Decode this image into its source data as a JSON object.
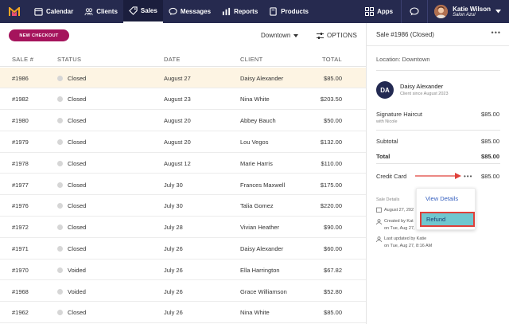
{
  "nav": {
    "items": [
      {
        "label": "Calendar",
        "icon": "calendar-icon"
      },
      {
        "label": "Clients",
        "icon": "clients-icon"
      },
      {
        "label": "Sales",
        "icon": "tag-icon",
        "active": true
      },
      {
        "label": "Messages",
        "icon": "messages-icon"
      },
      {
        "label": "Reports",
        "icon": "reports-icon"
      },
      {
        "label": "Products",
        "icon": "products-icon"
      }
    ],
    "apps_label": "Apps",
    "user_name": "Katie Wilson",
    "user_business": "Salon Azul",
    "colors": {
      "nav_bg": "#262a4f",
      "accent": "#a5145c"
    }
  },
  "toolbar": {
    "new_checkout": "NEW CHECKOUT",
    "location": "Downtown",
    "options": "OPTIONS"
  },
  "table": {
    "headers": {
      "sale": "SALE #",
      "status": "STATUS",
      "date": "DATE",
      "client": "CLIENT",
      "total": "TOTAL"
    },
    "rows": [
      {
        "sale": "#1986",
        "status": "Closed",
        "date": "August 27",
        "client": "Daisy Alexander",
        "total": "$85.00"
      },
      {
        "sale": "#1982",
        "status": "Closed",
        "date": "August 23",
        "client": "Nina White",
        "total": "$203.50"
      },
      {
        "sale": "#1980",
        "status": "Closed",
        "date": "August 20",
        "client": "Abbey Bauch",
        "total": "$50.00"
      },
      {
        "sale": "#1979",
        "status": "Closed",
        "date": "August 20",
        "client": "Lou Vegos",
        "total": "$132.00"
      },
      {
        "sale": "#1978",
        "status": "Closed",
        "date": "August 12",
        "client": "Marie Harris",
        "total": "$110.00"
      },
      {
        "sale": "#1977",
        "status": "Closed",
        "date": "July 30",
        "client": "Frances Maxwell",
        "total": "$175.00"
      },
      {
        "sale": "#1976",
        "status": "Closed",
        "date": "July 30",
        "client": "Talia Gomez",
        "total": "$220.00"
      },
      {
        "sale": "#1972",
        "status": "Closed",
        "date": "July 28",
        "client": "Vivian Heather",
        "total": "$90.00"
      },
      {
        "sale": "#1971",
        "status": "Closed",
        "date": "July 26",
        "client": "Daisy Alexander",
        "total": "$60.00"
      },
      {
        "sale": "#1970",
        "status": "Voided",
        "date": "July 26",
        "client": "Ella Harrington",
        "total": "$67.82"
      },
      {
        "sale": "#1968",
        "status": "Voided",
        "date": "July 26",
        "client": "Grace Williamson",
        "total": "$52.80"
      },
      {
        "sale": "#1962",
        "status": "Closed",
        "date": "July 26",
        "client": "Nina White",
        "total": "$85.00"
      }
    ]
  },
  "panel": {
    "title": "Sale #1986 (Closed)",
    "location_label": "Location:",
    "location_value": "Downtown",
    "customer_initials": "DA",
    "customer_name": "Daisy Alexander",
    "customer_since": "Client since August 2023",
    "item_name": "Signature Haircut",
    "item_staff": "with Nicole",
    "item_price": "$85.00",
    "subtotal_label": "Subtotal",
    "subtotal_value": "$85.00",
    "total_label": "Total",
    "total_value": "$85.00",
    "payment_label": "Credit Card",
    "payment_value": "$85.00",
    "details_label": "Sale Details",
    "detail_date": "August 27, 202",
    "detail_created": "Created by Kat",
    "detail_created_time": "on Tue, Aug 27, 8:15 AM",
    "detail_updated": "Last updated by Katie",
    "detail_updated_time": "on Tue, Aug 27, 8:16 AM",
    "menu_view": "View Details",
    "menu_refund": "Refund"
  }
}
